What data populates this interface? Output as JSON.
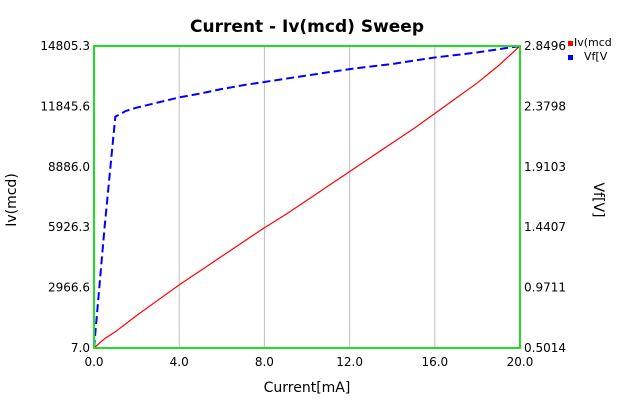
{
  "chart_data": {
    "type": "line",
    "title": "Current - Iv(mcd) Sweep",
    "xlabel": "Current[mA]",
    "ylabel": "Iv(mcd)",
    "y2label": "Vf[V]",
    "xlim": [
      0.0,
      20.0
    ],
    "ylim": [
      7.0,
      14805.3
    ],
    "y2lim": [
      0.5014,
      2.8496
    ],
    "x_ticks": [
      "0.0",
      "4.0",
      "8.0",
      "12.0",
      "16.0",
      "20.0"
    ],
    "y_ticks": [
      "7.0",
      "2966.6",
      "5926.3",
      "8886.0",
      "11845.6",
      "14805.3"
    ],
    "y2_ticks": [
      "0.5014",
      "0.9711",
      "1.4407",
      "1.9103",
      "2.3798",
      "2.8496"
    ],
    "grid": "vertical",
    "legend_position": "right",
    "colors": {
      "frame": "#22dd22",
      "grid": "#c0c0c0",
      "iv": "#ff0000",
      "vf": "#0000ff"
    },
    "series": [
      {
        "name": "Iv(mcd)",
        "axis": "left",
        "color": "#ff0000",
        "style": "solid",
        "x": [
          0,
          0.5,
          1,
          2,
          3,
          4,
          5,
          6,
          7,
          8,
          9,
          10,
          11,
          12,
          13,
          14,
          15,
          16,
          17,
          18,
          19,
          20
        ],
        "y": [
          7,
          470,
          800,
          1600,
          2350,
          3100,
          3800,
          4500,
          5200,
          5900,
          6550,
          7250,
          7950,
          8650,
          9350,
          10050,
          10750,
          11500,
          12250,
          13000,
          13850,
          14805.3
        ]
      },
      {
        "name": "Vf[V]",
        "axis": "right",
        "color": "#0000ff",
        "style": "dashed",
        "x": [
          0,
          0.5,
          1,
          1.5,
          2,
          3,
          4,
          5,
          6,
          7,
          8,
          9,
          10,
          11,
          12,
          13,
          14,
          15,
          16,
          17,
          18,
          19,
          20
        ],
        "y": [
          0.5014,
          1.45,
          2.3,
          2.345,
          2.37,
          2.41,
          2.45,
          2.48,
          2.515,
          2.545,
          2.57,
          2.595,
          2.62,
          2.645,
          2.67,
          2.69,
          2.71,
          2.735,
          2.76,
          2.78,
          2.8,
          2.825,
          2.8496
        ]
      }
    ],
    "legend": [
      {
        "label": "Iv(mcd",
        "color": "#ff0000"
      },
      {
        "label": "Vf[V",
        "color": "#0000ff"
      }
    ]
  }
}
